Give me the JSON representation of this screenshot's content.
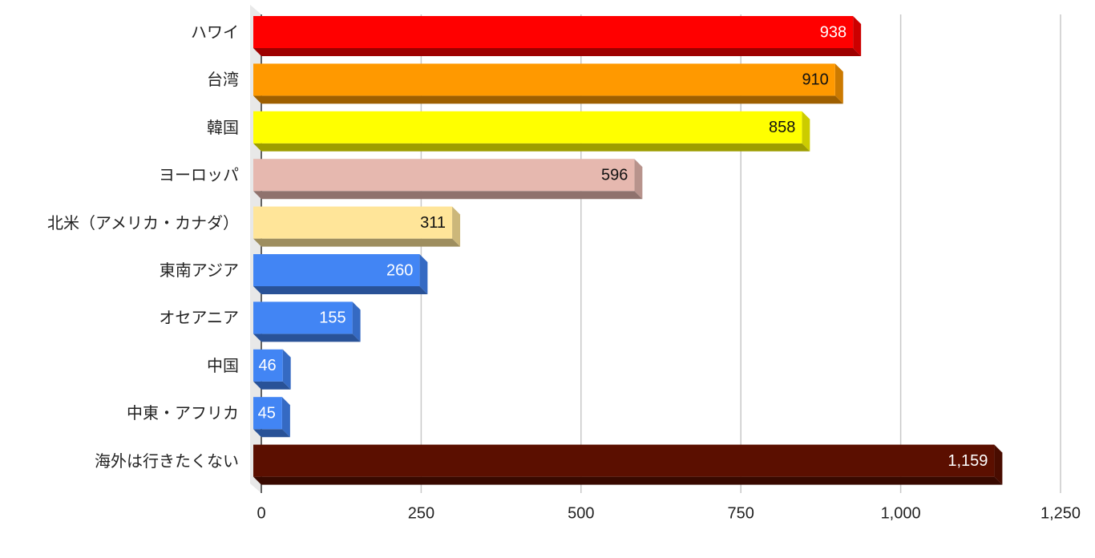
{
  "chart_data": {
    "type": "bar",
    "orientation": "horizontal",
    "categories": [
      "ハワイ",
      "台湾",
      "韓国",
      "ヨーロッパ",
      "北米（アメリカ・カナダ）",
      "東南アジア",
      "オセアニア",
      "中国",
      "中東・アフリカ",
      "海外は行きたくない"
    ],
    "values": [
      938,
      910,
      858,
      596,
      311,
      260,
      155,
      46,
      45,
      1159
    ],
    "value_labels": [
      "938",
      "910",
      "858",
      "596",
      "311",
      "260",
      "155",
      "46",
      "45",
      "1,159"
    ],
    "colors": [
      "#ff0000",
      "#ff9900",
      "#ffff00",
      "#e6b8af",
      "#ffe599",
      "#4285f4",
      "#4285f4",
      "#4285f4",
      "#4285f4",
      "#5b0f00"
    ],
    "label_colors": [
      "#ffffff",
      "#111111",
      "#111111",
      "#111111",
      "#111111",
      "#ffffff",
      "#ffffff",
      "#ffffff",
      "#ffffff",
      "#ffffff"
    ],
    "xlim": [
      0,
      1250
    ],
    "xticks": [
      0,
      250,
      500,
      750,
      {
        "value": 1000,
        "label": "1,000"
      },
      {
        "value": 1250,
        "label": "1,250"
      }
    ],
    "grid": true
  }
}
